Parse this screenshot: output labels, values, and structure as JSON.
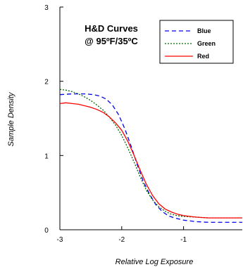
{
  "chart_data": {
    "type": "line",
    "title": "H&D Curves",
    "subtitle": "@ 95ºF/35ºC",
    "xlabel": "Relative Log Exposure",
    "ylabel": "Sample Density",
    "xlim": [
      -3,
      -0.05
    ],
    "ylim": [
      0,
      3
    ],
    "x_ticks": [
      -3,
      -2,
      -1
    ],
    "y_ticks": [
      0,
      1,
      2,
      3
    ],
    "grid": false,
    "legend_position": "top-right",
    "series": [
      {
        "name": "Blue",
        "color": "#0000ee",
        "dash": "6,4",
        "x": [
          -3.0,
          -2.8,
          -2.6,
          -2.45,
          -2.35,
          -2.25,
          -2.15,
          -2.05,
          -1.95,
          -1.85,
          -1.75,
          -1.65,
          -1.55,
          -1.45,
          -1.35,
          -1.25,
          -1.15,
          -1.0,
          -0.8,
          -0.6,
          -0.4,
          -0.2,
          -0.05
        ],
        "y": [
          1.82,
          1.83,
          1.83,
          1.82,
          1.8,
          1.76,
          1.68,
          1.55,
          1.36,
          1.13,
          0.88,
          0.65,
          0.48,
          0.34,
          0.25,
          0.19,
          0.16,
          0.13,
          0.11,
          0.1,
          0.1,
          0.1,
          0.1
        ]
      },
      {
        "name": "Green",
        "color": "#006600",
        "dash": "2,2",
        "x": [
          -3.0,
          -2.9,
          -2.8,
          -2.7,
          -2.6,
          -2.5,
          -2.4,
          -2.3,
          -2.2,
          -2.1,
          -2.0,
          -1.9,
          -1.8,
          -1.7,
          -1.6,
          -1.5,
          -1.4,
          -1.3,
          -1.2,
          -1.1,
          -1.0,
          -0.8,
          -0.6,
          -0.4,
          -0.2,
          -0.05
        ],
        "y": [
          1.89,
          1.88,
          1.86,
          1.83,
          1.79,
          1.74,
          1.68,
          1.61,
          1.52,
          1.41,
          1.27,
          1.1,
          0.91,
          0.71,
          0.53,
          0.4,
          0.31,
          0.25,
          0.21,
          0.19,
          0.18,
          0.17,
          0.16,
          0.16,
          0.16,
          0.16
        ]
      },
      {
        "name": "Red",
        "color": "#ff0000",
        "dash": "",
        "x": [
          -3.0,
          -2.9,
          -2.8,
          -2.7,
          -2.6,
          -2.5,
          -2.4,
          -2.3,
          -2.2,
          -2.1,
          -2.0,
          -1.9,
          -1.8,
          -1.7,
          -1.6,
          -1.5,
          -1.4,
          -1.3,
          -1.2,
          -1.1,
          -1.0,
          -0.8,
          -0.6,
          -0.4,
          -0.2,
          -0.05
        ],
        "y": [
          1.7,
          1.71,
          1.7,
          1.69,
          1.67,
          1.65,
          1.62,
          1.58,
          1.52,
          1.44,
          1.34,
          1.19,
          1.0,
          0.8,
          0.61,
          0.46,
          0.35,
          0.28,
          0.24,
          0.21,
          0.19,
          0.17,
          0.16,
          0.16,
          0.16,
          0.16
        ]
      }
    ]
  }
}
